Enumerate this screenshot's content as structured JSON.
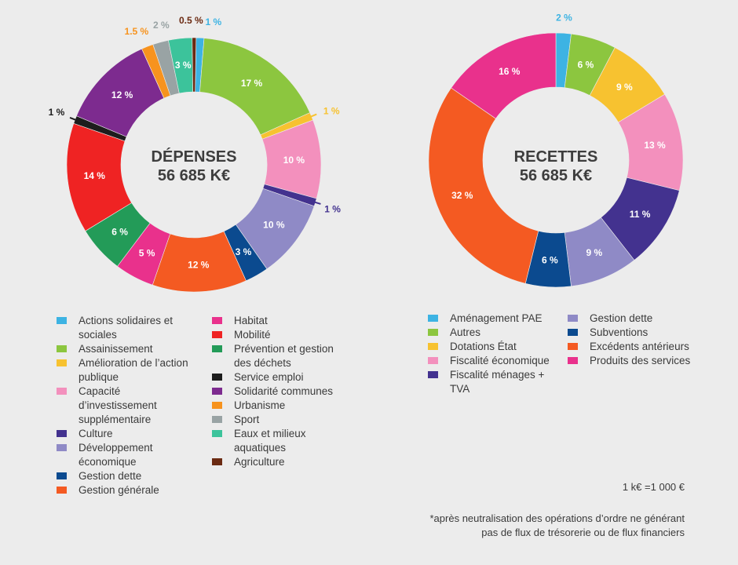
{
  "chart_data": [
    {
      "type": "pie",
      "title": "DÉPENSES",
      "total": "56 685 K€",
      "segments": [
        {
          "name": "Actions solidaires et sociales",
          "value": 1,
          "label": "1 %",
          "color": "#3db3e3"
        },
        {
          "name": "Assainissement",
          "value": 17,
          "label": "17 %",
          "color": "#8cc63f"
        },
        {
          "name": "Amélioration de l’action publique",
          "value": 1,
          "label": "1 %",
          "color": "#f7c230"
        },
        {
          "name": "Capacité d’investissement supplémentaire",
          "value": 10,
          "label": "10 %",
          "color": "#f390bd"
        },
        {
          "name": "Culture",
          "value": 1,
          "label": "1 %",
          "color": "#43328f"
        },
        {
          "name": "Développement économique",
          "value": 10,
          "label": "10 %",
          "color": "#8f8ac6"
        },
        {
          "name": "Gestion dette",
          "value": 3,
          "label": "3 %",
          "color": "#0b4a8f"
        },
        {
          "name": "Gestion générale",
          "value": 12,
          "label": "12 %",
          "color": "#f45a22"
        },
        {
          "name": "Habitat",
          "value": 5,
          "label": "5 %",
          "color": "#e9318c"
        },
        {
          "name": "Prévention et gestion des déchets",
          "value": 6,
          "label": "6 %",
          "color": "#239b58"
        },
        {
          "name": "Mobilité",
          "value": 14,
          "label": "14 %",
          "color": "#ef2323"
        },
        {
          "name": "Service emploi",
          "value": 1,
          "label": "1 %",
          "color": "#1d1d1d"
        },
        {
          "name": "Solidarité communes",
          "value": 12,
          "label": "12 %",
          "color": "#7d2b8f"
        },
        {
          "name": "Urbanisme",
          "value": 1.5,
          "label": "1.5 %",
          "color": "#f7931e"
        },
        {
          "name": "Sport",
          "value": 2,
          "label": "2 %",
          "color": "#99a3a4"
        },
        {
          "name": "Eaux et milieux aquatiques",
          "value": 3,
          "label": "3 %",
          "color": "#3cc39b"
        },
        {
          "name": "Agriculture",
          "value": 0.5,
          "label": "0.5 %",
          "color": "#6b2a12"
        }
      ]
    },
    {
      "type": "pie",
      "title": "RECETTES",
      "total": "56 685 K€",
      "segments": [
        {
          "name": "Aménagement PAE",
          "value": 2,
          "label": "2 %",
          "color": "#3db3e3"
        },
        {
          "name": "Autres",
          "value": 6,
          "label": "6 %",
          "color": "#8cc63f"
        },
        {
          "name": "Dotations État",
          "value": 9,
          "label": "9 %",
          "color": "#f7c230"
        },
        {
          "name": "Fiscalité économique",
          "value": 13,
          "label": "13 %",
          "color": "#f390bd"
        },
        {
          "name": "Fiscalité ménages + TVA",
          "value": 11,
          "label": "11 %",
          "color": "#43328f"
        },
        {
          "name": "Gestion dette",
          "value": 9,
          "label": "9 %",
          "color": "#8f8ac6"
        },
        {
          "name": "Subventions",
          "value": 6,
          "label": "6 %",
          "color": "#0b4a8f"
        },
        {
          "name": "Excédents antérieurs",
          "value": 32,
          "label": "32 %",
          "color": "#f45a22"
        },
        {
          "name": "Produits des services",
          "value": 16,
          "label": "16 %",
          "color": "#e9318c"
        }
      ]
    }
  ],
  "legends": {
    "depenses_col1": [
      {
        "label": "Actions solidaires et sociales",
        "color": "#3db3e3"
      },
      {
        "label": "Assainissement",
        "color": "#8cc63f"
      },
      {
        "label": "Amélioration de l’action publique",
        "color": "#f7c230"
      },
      {
        "label": "Capacité d’investissement supplémentaire",
        "color": "#f390bd"
      },
      {
        "label": "Culture",
        "color": "#43328f"
      },
      {
        "label": "Développement économique",
        "color": "#8f8ac6"
      },
      {
        "label": "Gestion dette",
        "color": "#0b4a8f"
      },
      {
        "label": "Gestion générale",
        "color": "#f45a22"
      }
    ],
    "depenses_col2": [
      {
        "label": "Habitat",
        "color": "#e9318c"
      },
      {
        "label": "Mobilité",
        "color": "#ef2323"
      },
      {
        "label": "Prévention et gestion des déchets",
        "color": "#239b58"
      },
      {
        "label": "Service emploi",
        "color": "#1d1d1d"
      },
      {
        "label": "Solidarité communes",
        "color": "#7d2b8f"
      },
      {
        "label": "Urbanisme",
        "color": "#f7931e"
      },
      {
        "label": "Sport",
        "color": "#99a3a4"
      },
      {
        "label": "Eaux et milieux aquatiques",
        "color": "#3cc39b"
      },
      {
        "label": "Agriculture",
        "color": "#6b2a12"
      }
    ],
    "recettes_col1": [
      {
        "label": "Aménagement PAE",
        "color": "#3db3e3"
      },
      {
        "label": "Autres",
        "color": "#8cc63f"
      },
      {
        "label": "Dotations État",
        "color": "#f7c230"
      },
      {
        "label": "Fiscalité économique",
        "color": "#f390bd"
      },
      {
        "label": "Fiscalité ménages + TVA",
        "color": "#43328f"
      }
    ],
    "recettes_col2": [
      {
        "label": "Gestion dette",
        "color": "#8f8ac6"
      },
      {
        "label": "Subventions",
        "color": "#0b4a8f"
      },
      {
        "label": "Excédents antérieurs",
        "color": "#f45a22"
      },
      {
        "label": "Produits des services",
        "color": "#e9318c"
      }
    ]
  },
  "notes": {
    "unit": "1 k€ =1 000 €",
    "footnote": "*après neutralisation des opérations d’ordre ne générant pas de flux de trésorerie ou de flux financiers"
  }
}
